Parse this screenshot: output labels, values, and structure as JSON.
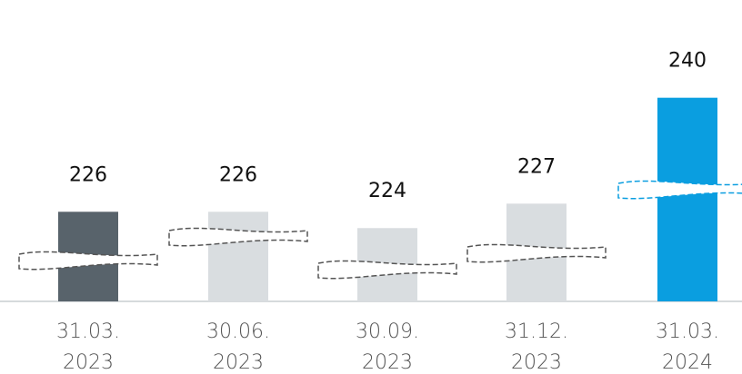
{
  "chart_data": {
    "type": "bar",
    "categories": [
      "31.03. 2023",
      "30.06. 2023",
      "30.09. 2023",
      "31.12. 2023",
      "31.03. 2024"
    ],
    "values": [
      226,
      226,
      224,
      227,
      240
    ],
    "colors": [
      "#58636b",
      "#d9dde0",
      "#d9dde0",
      "#d9dde0",
      "#0a9ee0"
    ],
    "ylim": [
      215,
      252
    ]
  }
}
